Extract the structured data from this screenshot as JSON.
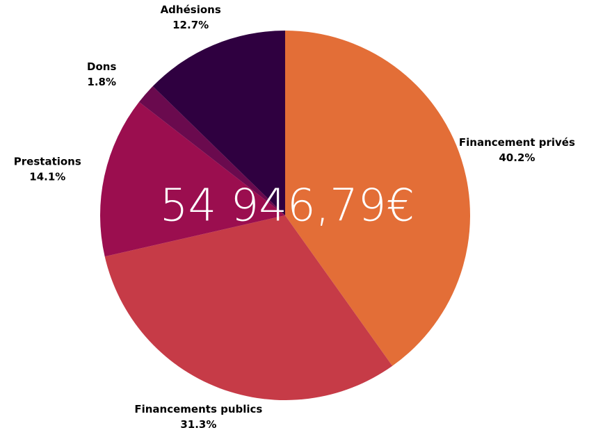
{
  "chart_data": {
    "type": "pie",
    "center_label": "54 946,79€",
    "categories": [
      "Financement privés",
      "Financements publics",
      "Prestations",
      "Dons",
      "Adhésions"
    ],
    "values": [
      40.2,
      31.3,
      14.1,
      1.8,
      12.7
    ],
    "value_labels": [
      "40.2%",
      "31.3%",
      "14.1%",
      "1.8%",
      "12.7%"
    ],
    "colors": [
      "#e36e37",
      "#c63b47",
      "#9b0e4f",
      "#6a0a4e",
      "#2f0040"
    ]
  }
}
